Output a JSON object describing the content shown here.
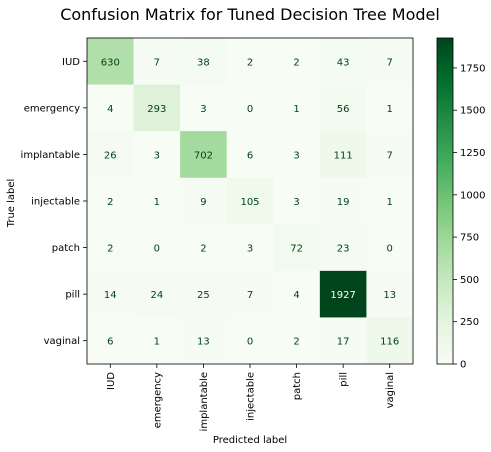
{
  "chart_data": {
    "type": "heatmap",
    "title": "Confusion Matrix for Tuned Decision Tree Model",
    "xlabel": "Predicted label",
    "ylabel": "True label",
    "x_categories": [
      "IUD",
      "emergency",
      "implantable",
      "injectable",
      "patch",
      "pill",
      "vaginal"
    ],
    "y_categories": [
      "IUD",
      "emergency",
      "implantable",
      "injectable",
      "patch",
      "pill",
      "vaginal"
    ],
    "matrix": [
      [
        630,
        7,
        38,
        2,
        2,
        43,
        7
      ],
      [
        4,
        293,
        3,
        0,
        1,
        56,
        1
      ],
      [
        26,
        3,
        702,
        6,
        3,
        111,
        7
      ],
      [
        2,
        1,
        9,
        105,
        3,
        19,
        1
      ],
      [
        2,
        0,
        2,
        3,
        72,
        23,
        0
      ],
      [
        14,
        24,
        25,
        7,
        4,
        1927,
        13
      ],
      [
        6,
        1,
        13,
        0,
        2,
        17,
        116
      ]
    ],
    "colormap": "Greens",
    "colorbar": {
      "range": [
        0,
        1927
      ],
      "ticks": [
        0,
        250,
        500,
        750,
        1000,
        1250,
        1500,
        1750
      ]
    },
    "grid": false
  }
}
